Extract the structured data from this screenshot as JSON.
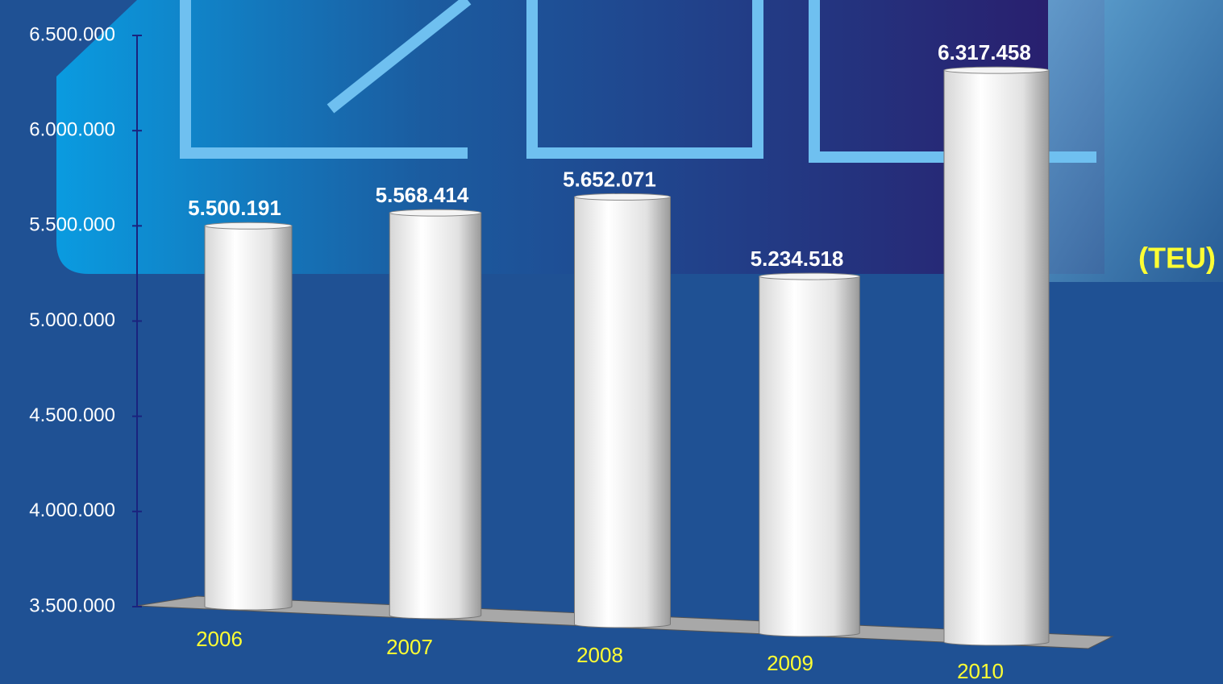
{
  "chart_data": {
    "type": "bar",
    "unit_label": "(TEU)",
    "categories": [
      "2006",
      "2007",
      "2008",
      "2009",
      "2010"
    ],
    "values": [
      5500191,
      5568414,
      5652071,
      5234518,
      6317458
    ],
    "value_labels": [
      "5.500.191",
      "5.568.414",
      "5.652.071",
      "5.234.518",
      "6.317.458"
    ],
    "color": "#ffffff",
    "ylim": [
      3500000,
      6500000
    ],
    "yticks": [
      {
        "value": 3500000,
        "label": "3.500.000"
      },
      {
        "value": 4000000,
        "label": "4.000.000"
      },
      {
        "value": 4500000,
        "label": "4.500.000"
      },
      {
        "value": 5000000,
        "label": "5.000.000"
      },
      {
        "value": 5500000,
        "label": "5.500.000"
      },
      {
        "value": 6000000,
        "label": "6.000.000"
      },
      {
        "value": 6500000,
        "label": "6.500.000"
      }
    ]
  }
}
